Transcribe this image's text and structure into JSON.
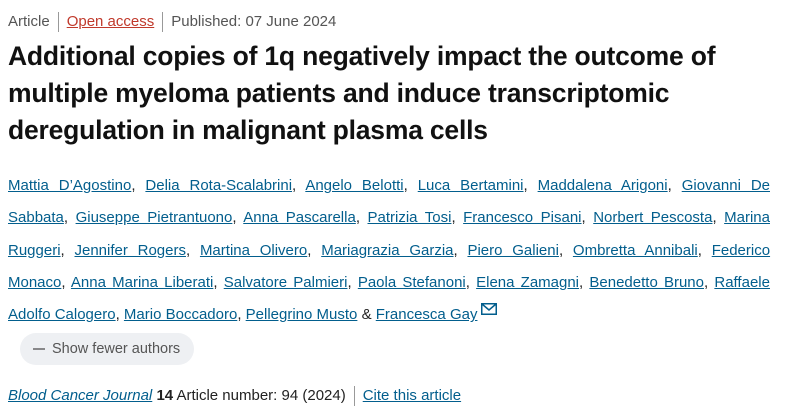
{
  "header": {
    "type": "Article",
    "access": "Open access",
    "published": "Published: 07 June 2024"
  },
  "title": "Additional copies of 1q negatively impact the outcome of multiple myeloma patients and induce transcriptomic deregulation in malignant plasma cells",
  "authors": {
    "names": [
      "Mattia D’Agostino",
      "Delia Rota-Scalabrini",
      "Angelo Belotti",
      "Luca Bertamini",
      "Maddalena Arigoni",
      "Giovanni De Sabbata",
      "Giuseppe Pietrantuono",
      "Anna Pascarella",
      "Patrizia Tosi",
      "Francesco Pisani",
      "Norbert Pescosta",
      "Marina Ruggeri",
      "Jennifer Rogers",
      "Martina Olivero",
      "Mariagrazia Garzia",
      "Piero Galieni",
      "Ombretta Annibali",
      "Federico Monaco",
      "Anna Marina Liberati",
      "Salvatore Palmieri",
      "Paola Stefanoni",
      "Elena Zamagni",
      "Benedetto Bruno",
      "Raffaele Adolfo Calogero",
      "Mario Boccadoro",
      "Pellegrino Musto",
      "Francesca Gay"
    ],
    "separator": ",",
    "last_separator": "&",
    "toggle": "Show fewer authors"
  },
  "citation": {
    "journal": "Blood Cancer Journal",
    "volume": "14",
    "article": "Article number: 94 (2024)",
    "cite": "Cite this article"
  }
}
